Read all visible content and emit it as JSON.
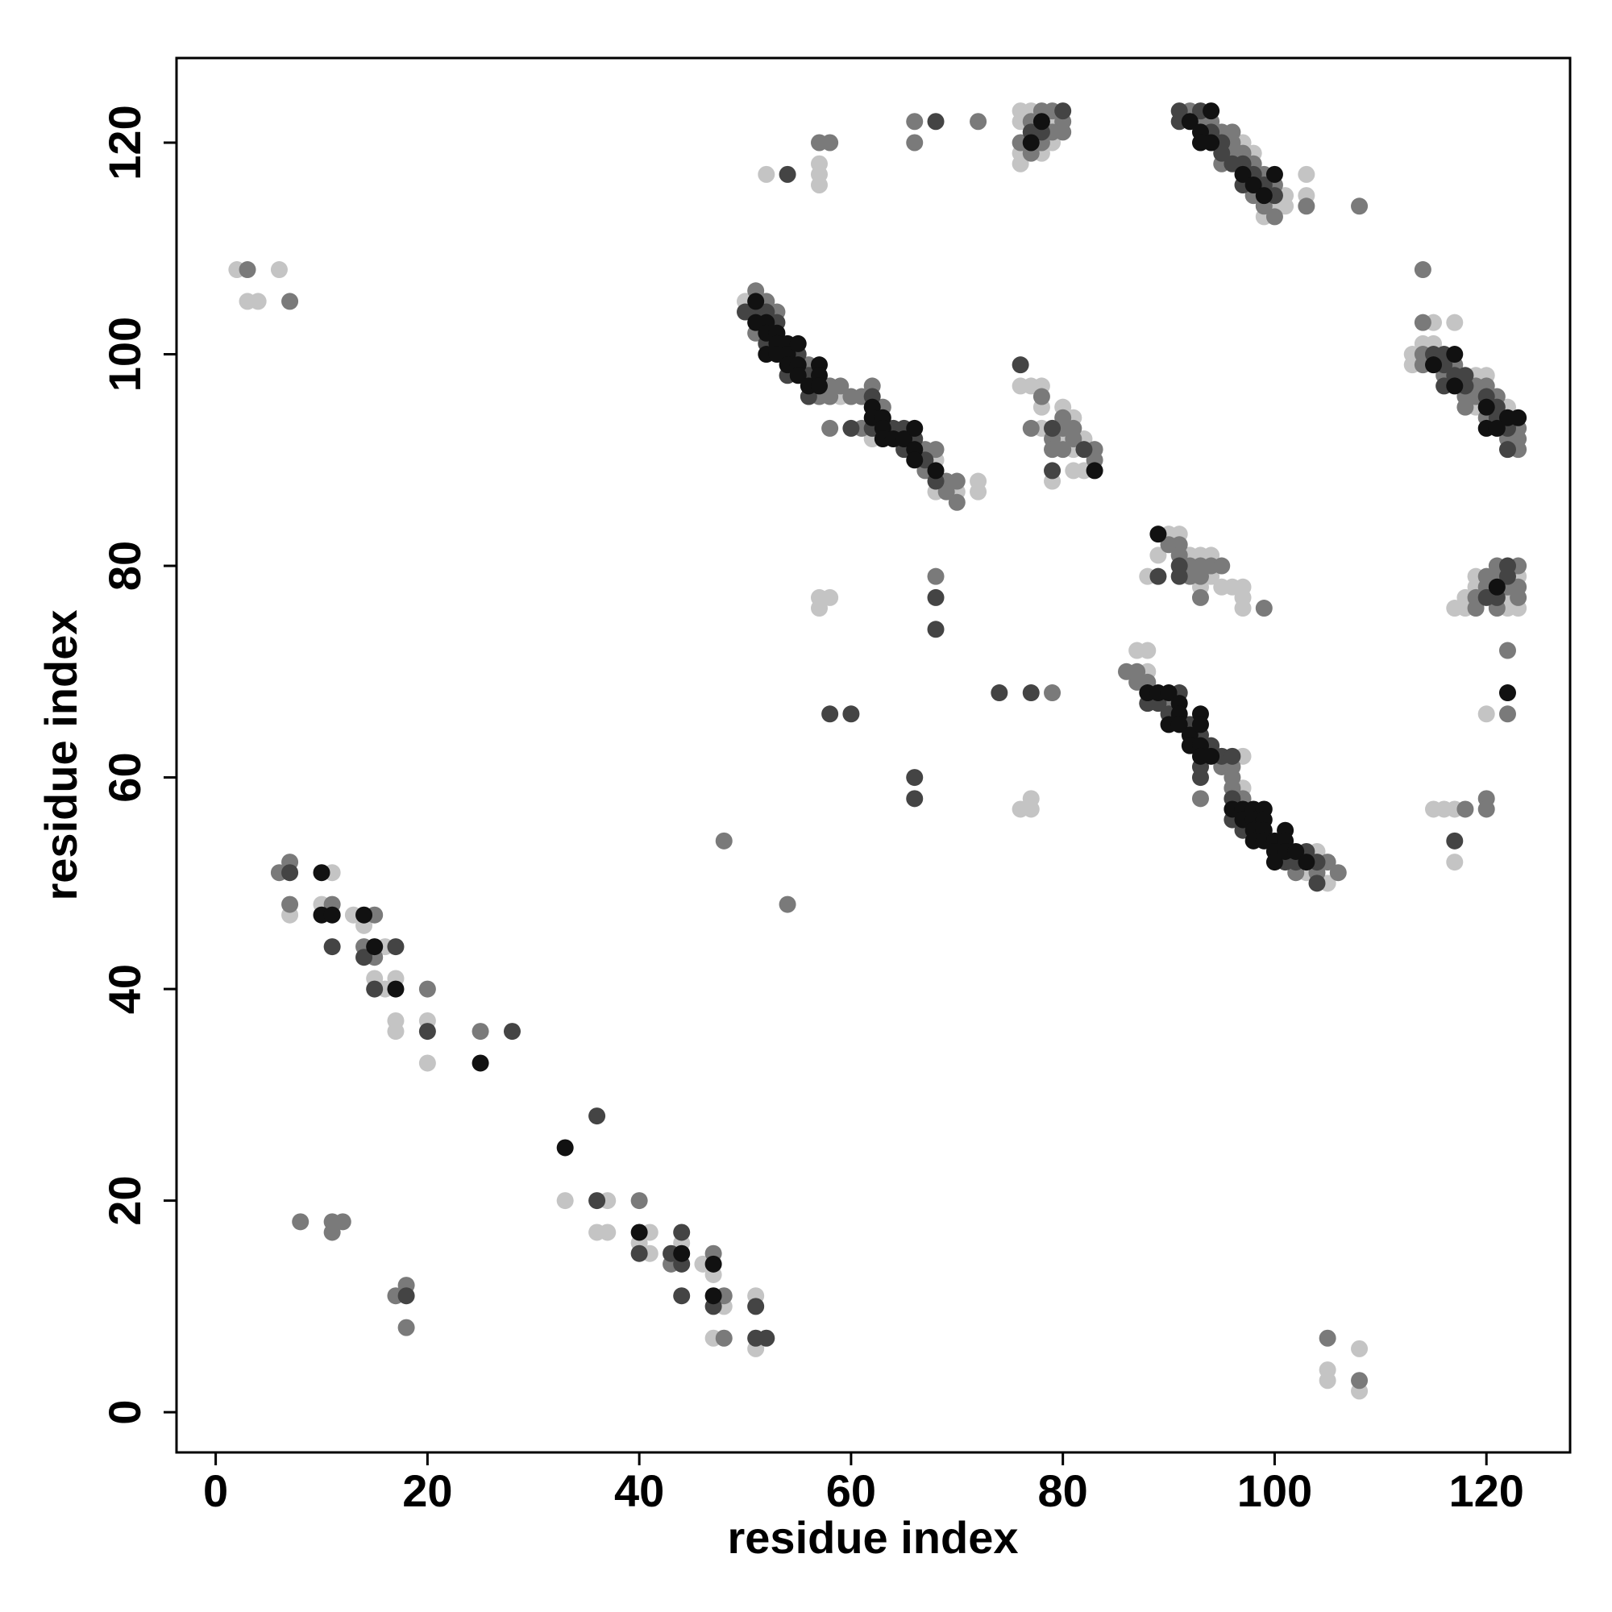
{
  "chart_data": {
    "type": "scatter",
    "x_label": "residue index",
    "y_label": "residue index",
    "xlim": [
      -3.7,
      127.9
    ],
    "ylim": [
      -3.8,
      128
    ],
    "xticks": [
      0,
      20,
      40,
      60,
      80,
      100,
      120
    ],
    "yticks": [
      0,
      20,
      40,
      60,
      80,
      100,
      120
    ],
    "series": [
      {
        "color": "#c4c4c4",
        "x": [
          7,
          11,
          10,
          13,
          14,
          16,
          15,
          17,
          16,
          17,
          20,
          17,
          20,
          33,
          37,
          36,
          37,
          41,
          40,
          41,
          44,
          46,
          47,
          48,
          51,
          47,
          51,
          2,
          6,
          3,
          4,
          57,
          58,
          57,
          76,
          77,
          77,
          52,
          57,
          57,
          57,
          108,
          105,
          105,
          108,
          120,
          115,
          116,
          117,
          117,
          50,
          59,
          62,
          68,
          68,
          70,
          72,
          72,
          87,
          88,
          88,
          97,
          97,
          103,
          104,
          105,
          76,
          77,
          78,
          78,
          78,
          80,
          80,
          81,
          81,
          82,
          79,
          81,
          82,
          90,
          91,
          89,
          92,
          93,
          94,
          88,
          94,
          93,
          95,
          96,
          97,
          97,
          97,
          76,
          77,
          76,
          79,
          79,
          76,
          78,
          76,
          97,
          98,
          101,
          100,
          101,
          99,
          103,
          103,
          115,
          117,
          114,
          115,
          113,
          113,
          119,
          120,
          119,
          122,
          119,
          123,
          119,
          118,
          122,
          117,
          118,
          122,
          123
        ],
        "y": [
          47,
          51,
          48,
          47,
          46,
          44,
          41,
          41,
          40,
          37,
          37,
          36,
          33,
          20,
          20,
          17,
          17,
          17,
          16,
          15,
          16,
          14,
          13,
          10,
          11,
          7,
          6,
          108,
          108,
          105,
          105,
          77,
          77,
          76,
          57,
          58,
          57,
          117,
          118,
          117,
          116,
          6,
          4,
          3,
          2,
          66,
          57,
          57,
          57,
          52,
          105,
          96,
          92,
          90,
          87,
          87,
          88,
          87,
          72,
          72,
          70,
          62,
          59,
          51,
          53,
          50,
          97,
          97,
          97,
          95,
          93,
          95,
          92,
          94,
          91,
          92,
          88,
          89,
          89,
          83,
          83,
          81,
          81,
          81,
          81,
          79,
          79,
          78,
          78,
          78,
          78,
          77,
          76,
          123,
          123,
          122,
          122,
          120,
          119,
          119,
          118,
          120,
          119,
          115,
          114,
          114,
          113,
          117,
          115,
          103,
          103,
          101,
          101,
          100,
          99,
          98,
          98,
          95,
          95,
          79,
          79,
          78,
          77,
          77,
          76,
          76,
          76,
          76
        ]
      },
      {
        "color": "#7a7a7a",
        "x": [
          6,
          7,
          7,
          11,
          15,
          14,
          15,
          20,
          25,
          40,
          43,
          47,
          48,
          48,
          8,
          11,
          12,
          11,
          17,
          18,
          18,
          3,
          7,
          48,
          54,
          68,
          79,
          57,
          58,
          66,
          66,
          72,
          105,
          108,
          108,
          114,
          122,
          122,
          118,
          120,
          120,
          99,
          51,
          51,
          52,
          53,
          56,
          57,
          58,
          58,
          58,
          59,
          60,
          61,
          61,
          62,
          63,
          67,
          67,
          68,
          69,
          69,
          70,
          70,
          86,
          87,
          87,
          88,
          90,
          93,
          95,
          96,
          96,
          96,
          97,
          102,
          104,
          105,
          106,
          78,
          77,
          79,
          80,
          80,
          81,
          81,
          83,
          83,
          79,
          80,
          90,
          91,
          91,
          92,
          93,
          94,
          95,
          92,
          93,
          93,
          78,
          79,
          77,
          80,
          79,
          80,
          76,
          78,
          77,
          92,
          93,
          94,
          95,
          96,
          96,
          96,
          97,
          95,
          98,
          99,
          100,
          98,
          99,
          100,
          103,
          114,
          114,
          114,
          117,
          116,
          119,
          120,
          118,
          119,
          121,
          118,
          120,
          123,
          122,
          123,
          123,
          121,
          123,
          120,
          121,
          120,
          122,
          123,
          119,
          123,
          119,
          121
        ],
        "y": [
          51,
          52,
          48,
          48,
          47,
          44,
          43,
          40,
          36,
          20,
          14,
          15,
          11,
          7,
          18,
          18,
          18,
          17,
          11,
          12,
          8,
          108,
          105,
          54,
          48,
          79,
          68,
          120,
          120,
          122,
          120,
          122,
          7,
          3,
          114,
          108,
          72,
          66,
          57,
          58,
          57,
          76,
          106,
          102,
          105,
          104,
          99,
          96,
          97,
          96,
          93,
          97,
          96,
          96,
          93,
          97,
          95,
          91,
          89,
          91,
          88,
          87,
          88,
          86,
          70,
          70,
          69,
          69,
          67,
          58,
          61,
          61,
          60,
          59,
          58,
          51,
          51,
          52,
          51,
          96,
          93,
          92,
          94,
          93,
          93,
          92,
          91,
          90,
          91,
          91,
          82,
          82,
          81,
          80,
          80,
          80,
          80,
          79,
          79,
          77,
          123,
          123,
          122,
          122,
          121,
          121,
          120,
          120,
          119,
          123,
          122,
          122,
          121,
          121,
          120,
          119,
          119,
          118,
          118,
          117,
          116,
          115,
          114,
          113,
          114,
          103,
          100,
          99,
          99,
          98,
          97,
          97,
          96,
          96,
          96,
          95,
          94,
          93,
          92,
          92,
          91,
          80,
          80,
          79,
          79,
          78,
          78,
          78,
          77,
          77,
          76,
          76
        ]
      },
      {
        "color": "#444444",
        "x": [
          7,
          11,
          17,
          14,
          15,
          20,
          28,
          36,
          36,
          40,
          43,
          44,
          44,
          44,
          47,
          51,
          51,
          52,
          18,
          54,
          68,
          58,
          60,
          66,
          66,
          68,
          68,
          74,
          77,
          117,
          50,
          51,
          52,
          52,
          53,
          54,
          55,
          56,
          56,
          60,
          62,
          62,
          64,
          65,
          65,
          66,
          67,
          68,
          88,
          89,
          90,
          91,
          92,
          93,
          93,
          93,
          94,
          95,
          96,
          96,
          96,
          97,
          101,
          102,
          103,
          104,
          104,
          76,
          79,
          82,
          79,
          91,
          89,
          91,
          80,
          77,
          78,
          91,
          93,
          91,
          94,
          95,
          95,
          96,
          97,
          98,
          97,
          99,
          100,
          115,
          116,
          116,
          117,
          118,
          116,
          118,
          120,
          121,
          121,
          122,
          122,
          122,
          122,
          120,
          121
        ],
        "y": [
          51,
          44,
          44,
          43,
          40,
          36,
          36,
          28,
          20,
          15,
          15,
          14,
          17,
          11,
          10,
          10,
          7,
          7,
          11,
          117,
          122,
          66,
          66,
          60,
          58,
          77,
          74,
          68,
          68,
          54,
          104,
          104,
          104,
          101,
          103,
          98,
          100,
          98,
          96,
          93,
          96,
          93,
          93,
          93,
          91,
          92,
          90,
          88,
          67,
          67,
          66,
          68,
          65,
          64,
          61,
          60,
          63,
          62,
          62,
          58,
          56,
          55,
          52,
          52,
          53,
          52,
          50,
          99,
          93,
          91,
          89,
          80,
          79,
          79,
          123,
          121,
          121,
          123,
          123,
          122,
          121,
          120,
          119,
          118,
          118,
          117,
          116,
          116,
          115,
          100,
          100,
          99,
          98,
          98,
          97,
          97,
          96,
          95,
          94,
          93,
          91,
          80,
          79,
          77,
          77
        ]
      },
      {
        "color": "#111111",
        "x": [
          10,
          10,
          11,
          14,
          15,
          17,
          25,
          33,
          40,
          44,
          47,
          47,
          122,
          51,
          51,
          52,
          52,
          52,
          53,
          53,
          53,
          54,
          54,
          54,
          55,
          55,
          55,
          56,
          57,
          57,
          57,
          62,
          62,
          63,
          63,
          63,
          64,
          65,
          66,
          66,
          66,
          68,
          88,
          89,
          90,
          90,
          91,
          91,
          91,
          92,
          92,
          93,
          93,
          93,
          93,
          94,
          96,
          97,
          97,
          98,
          98,
          98,
          98,
          99,
          99,
          99,
          99,
          100,
          100,
          100,
          101,
          101,
          101,
          102,
          103,
          83,
          89,
          78,
          77,
          94,
          92,
          93,
          93,
          94,
          97,
          100,
          98,
          99,
          117,
          115,
          117,
          120,
          122,
          123,
          120,
          121,
          121
        ],
        "y": [
          51,
          47,
          47,
          47,
          44,
          40,
          33,
          25,
          17,
          15,
          14,
          11,
          68,
          105,
          103,
          103,
          102,
          100,
          102,
          101,
          100,
          101,
          100,
          99,
          101,
          99,
          98,
          97,
          99,
          98,
          97,
          95,
          94,
          94,
          93,
          92,
          92,
          92,
          93,
          91,
          90,
          89,
          68,
          68,
          68,
          65,
          67,
          66,
          65,
          64,
          63,
          66,
          65,
          63,
          62,
          62,
          57,
          57,
          56,
          57,
          56,
          55,
          54,
          57,
          56,
          55,
          54,
          54,
          53,
          52,
          55,
          54,
          53,
          53,
          52,
          89,
          83,
          122,
          120,
          123,
          122,
          121,
          120,
          120,
          117,
          117,
          116,
          115,
          100,
          99,
          97,
          95,
          94,
          94,
          93,
          93,
          78
        ]
      }
    ]
  }
}
